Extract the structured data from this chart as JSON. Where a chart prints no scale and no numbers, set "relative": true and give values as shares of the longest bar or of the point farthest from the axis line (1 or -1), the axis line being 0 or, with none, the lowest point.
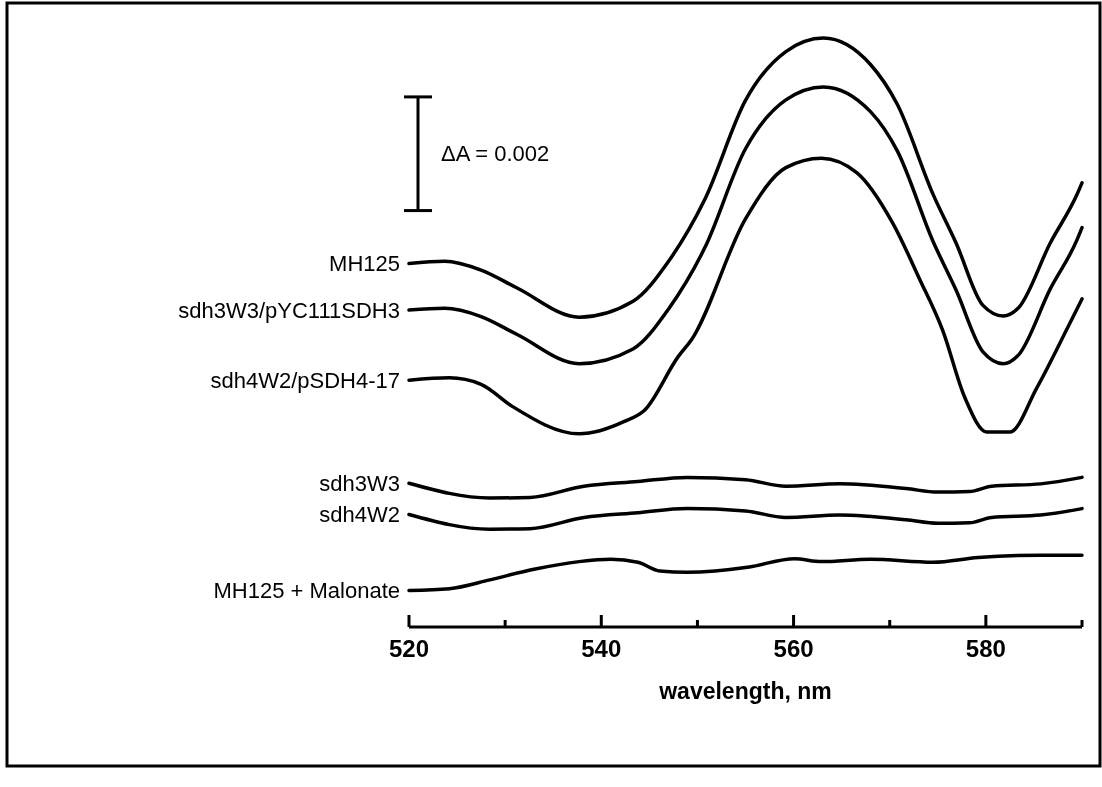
{
  "chart_data": {
    "type": "line",
    "relative": true,
    "xlabel": "wavelength, nm",
    "xlim": [
      520,
      590
    ],
    "xticks": [
      520,
      {
        "value": 530,
        "label": null
      },
      540,
      {
        "value": 550,
        "label": null
      },
      560,
      {
        "value": 570,
        "label": null
      },
      580,
      {
        "value": 590,
        "label": null
      }
    ],
    "grid": false,
    "marker": "none",
    "line_style": "solid",
    "annotations": [
      "ΔA = 0.002"
    ],
    "series": [
      {
        "name": "MH125",
        "color": "#000000",
        "x": [
          520,
          523.7,
          527.5,
          531.2,
          537.7,
          543.3,
          547,
          550.8,
          555,
          559.2,
          563.1,
          568,
          570.8,
          574.5,
          576.9,
          579.7,
          581.8,
          583.4,
          586.7,
          589.5,
          590
        ],
        "values": [
          0.617,
          0.621,
          0.606,
          0.576,
          0.526,
          0.553,
          0.621,
          0.727,
          0.894,
          0.977,
          1.0,
          0.955,
          0.887,
          0.735,
          0.652,
          0.546,
          0.528,
          0.542,
          0.652,
          0.735,
          0.754
        ]
      },
      {
        "name": "sdh3W3/pYC111SDH3",
        "color": "#000000",
        "x": [
          520,
          523.7,
          527.5,
          531.2,
          537.7,
          543.3,
          547,
          550.8,
          555,
          559.2,
          563.1,
          568,
          570.8,
          574.5,
          576.9,
          579.7,
          581.8,
          583.4,
          586.7,
          589.5,
          590
        ],
        "values": [
          0.538,
          0.541,
          0.527,
          0.497,
          0.447,
          0.472,
          0.54,
          0.645,
          0.812,
          0.895,
          0.917,
          0.875,
          0.808,
          0.655,
          0.572,
          0.467,
          0.447,
          0.462,
          0.574,
          0.658,
          0.678
        ]
      },
      {
        "name": "sdh4W2/pSDH4-17",
        "color": "#000000",
        "x": [
          520,
          524.2,
          527.5,
          530.7,
          537.7,
          542.4,
          544.5,
          548,
          549.4,
          555,
          559.2,
          562.9,
          566.6,
          570.3,
          573.1,
          575.5,
          577.8,
          580.1,
          582.5,
          585.3,
          588.5,
          590
        ],
        "values": [
          0.419,
          0.423,
          0.412,
          0.375,
          0.328,
          0.349,
          0.368,
          0.459,
          0.488,
          0.693,
          0.78,
          0.796,
          0.771,
          0.686,
          0.591,
          0.504,
          0.39,
          0.331,
          0.331,
          0.406,
          0.508,
          0.557
        ]
      },
      {
        "name": "sdh3W3",
        "color": "#000000",
        "x": [
          520,
          528.4,
          532.6,
          538.2,
          543.8,
          548.9,
          555,
          559.2,
          564.8,
          571.7,
          575,
          578.3,
          580.6,
          585.7,
          590
        ],
        "values": [
          0.244,
          0.219,
          0.22,
          0.239,
          0.247,
          0.254,
          0.25,
          0.239,
          0.243,
          0.235,
          0.229,
          0.23,
          0.239,
          0.243,
          0.254
        ]
      },
      {
        "name": "sdh4W2",
        "color": "#000000",
        "x": [
          520,
          528.4,
          532.6,
          538.2,
          543.8,
          548.9,
          555,
          559.2,
          564.8,
          571.7,
          575,
          578.3,
          580.6,
          585.7,
          590
        ],
        "values": [
          0.191,
          0.166,
          0.167,
          0.186,
          0.194,
          0.201,
          0.197,
          0.186,
          0.19,
          0.182,
          0.176,
          0.177,
          0.186,
          0.19,
          0.201
        ]
      },
      {
        "name": "MH125 + Malonate",
        "color": "#000000",
        "x": [
          520,
          524.2,
          528.4,
          533,
          537.7,
          541,
          543.8,
          546.1,
          548.9,
          555.4,
          560.1,
          562.9,
          568,
          574.5,
          579.2,
          585.7,
          590
        ],
        "values": [
          0.062,
          0.065,
          0.08,
          0.098,
          0.111,
          0.115,
          0.11,
          0.095,
          0.093,
          0.102,
          0.116,
          0.111,
          0.115,
          0.11,
          0.118,
          0.122,
          0.122
        ]
      }
    ]
  }
}
